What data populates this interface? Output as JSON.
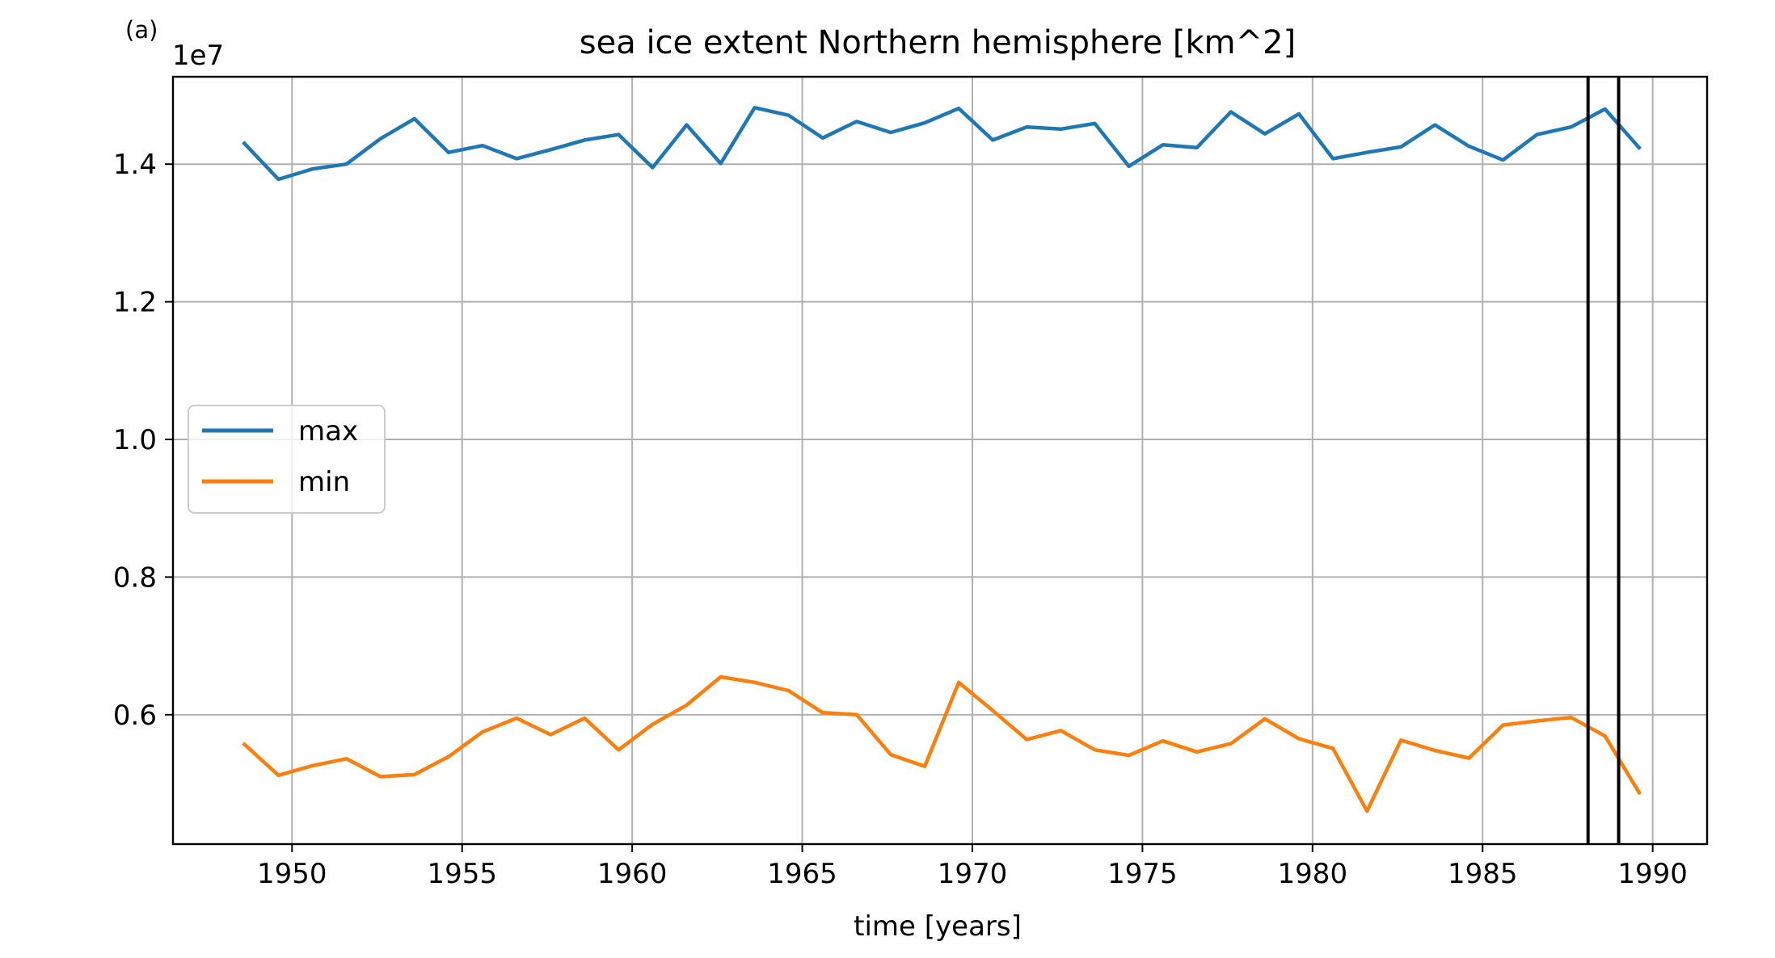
{
  "panel_label": "(a)",
  "chart_data": {
    "type": "line",
    "title": "sea ice extent Northern hemisphere [km^2]",
    "xlabel": "time [years]",
    "ylabel": "",
    "y_offset_label": "1e7",
    "xlim": [
      1946.5,
      1991.6
    ],
    "ylim": [
      0.412,
      1.527
    ],
    "xticks": [
      1950,
      1955,
      1960,
      1965,
      1970,
      1975,
      1980,
      1985,
      1990
    ],
    "xtick_labels": [
      "1950",
      "1955",
      "1960",
      "1965",
      "1970",
      "1975",
      "1980",
      "1985",
      "1990"
    ],
    "yticks": [
      0.6,
      0.8,
      1.0,
      1.2,
      1.4
    ],
    "ytick_labels": [
      "0.6",
      "0.8",
      "1.0",
      "1.2",
      "1.4"
    ],
    "grid": true,
    "legend_position": "center-left",
    "x": [
      1948.6,
      1949.6,
      1950.6,
      1951.6,
      1952.6,
      1953.6,
      1954.6,
      1955.6,
      1956.6,
      1957.6,
      1958.6,
      1959.6,
      1960.6,
      1961.6,
      1962.6,
      1963.6,
      1964.6,
      1965.6,
      1966.6,
      1967.6,
      1968.6,
      1969.6,
      1970.6,
      1971.6,
      1972.6,
      1973.6,
      1974.6,
      1975.6,
      1976.6,
      1977.6,
      1978.6,
      1979.6,
      1980.6,
      1981.6,
      1982.6,
      1983.6,
      1984.6,
      1985.6,
      1986.6,
      1987.6,
      1988.6,
      1989.6
    ],
    "series": [
      {
        "name": "max",
        "color": "#1f77b4",
        "values": [
          1.43,
          1.378,
          1.393,
          1.4,
          1.437,
          1.466,
          1.417,
          1.427,
          1.408,
          1.421,
          1.435,
          1.443,
          1.395,
          1.457,
          1.401,
          1.482,
          1.471,
          1.438,
          1.462,
          1.446,
          1.46,
          1.481,
          1.435,
          1.454,
          1.451,
          1.459,
          1.397,
          1.428,
          1.424,
          1.476,
          1.444,
          1.473,
          1.408,
          1.417,
          1.425,
          1.457,
          1.426,
          1.406,
          1.443,
          1.454,
          1.48,
          1.424
        ]
      },
      {
        "name": "min",
        "color": "#ff7f0e",
        "values": [
          0.557,
          0.512,
          0.526,
          0.536,
          0.51,
          0.513,
          0.539,
          0.575,
          0.595,
          0.571,
          0.595,
          0.549,
          0.586,
          0.614,
          0.655,
          0.647,
          0.635,
          0.603,
          0.6,
          0.542,
          0.525,
          0.647,
          0.606,
          0.564,
          0.577,
          0.549,
          0.541,
          0.562,
          0.546,
          0.558,
          0.594,
          0.565,
          0.551,
          0.46,
          0.563,
          0.548,
          0.537,
          0.585,
          0.591,
          0.596,
          0.569,
          0.487
        ]
      }
    ],
    "vlines": [
      1988.1,
      1989.0
    ]
  }
}
